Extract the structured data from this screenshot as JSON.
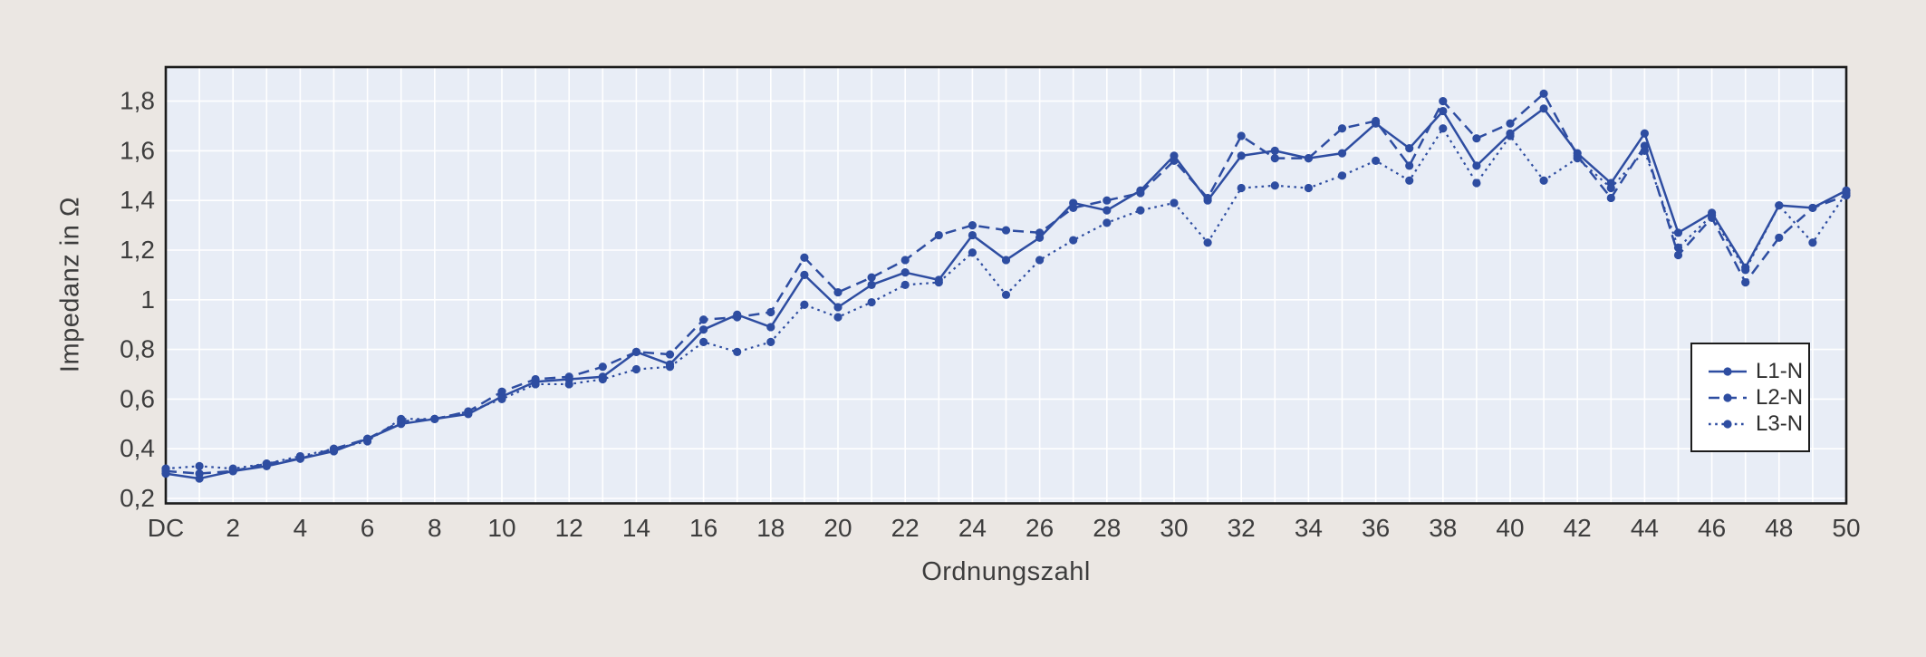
{
  "page": {
    "background_color": "#ebe7e3"
  },
  "chart_data": {
    "type": "line",
    "title": "",
    "xlabel": "Ordnungszahl",
    "ylabel": "Impedanz in Ω",
    "x_min": 0,
    "x_max": 50,
    "x_note": "x = harmonic order, DC (0) through 50, one data point per integer order",
    "x_tick_values": [
      0,
      2,
      4,
      6,
      8,
      10,
      12,
      14,
      16,
      18,
      20,
      22,
      24,
      26,
      28,
      30,
      32,
      34,
      36,
      38,
      40,
      42,
      44,
      46,
      48,
      50
    ],
    "x_tick_labels": [
      "DC",
      "2",
      "4",
      "6",
      "8",
      "10",
      "12",
      "14",
      "16",
      "18",
      "20",
      "22",
      "24",
      "26",
      "28",
      "30",
      "32",
      "34",
      "36",
      "38",
      "40",
      "42",
      "44",
      "46",
      "48",
      "50"
    ],
    "y_tick_values": [
      0.2,
      0.4,
      0.6,
      0.8,
      1.0,
      1.2,
      1.4,
      1.6,
      1.8
    ],
    "y_tick_labels": [
      "0,2",
      "0,4",
      "0,6",
      "0,8",
      "1",
      "1,2",
      "1,4",
      "1,6",
      "1,8"
    ],
    "ylim": [
      0.18,
      1.94
    ],
    "grid": "on",
    "legend_position": "inside-right",
    "series": [
      {
        "name": "L1-N",
        "line_style": "solid",
        "values": [
          0.3,
          0.28,
          0.31,
          0.33,
          0.36,
          0.39,
          0.44,
          0.5,
          0.52,
          0.54,
          0.61,
          0.67,
          0.68,
          0.69,
          0.79,
          0.74,
          0.88,
          0.94,
          0.89,
          1.1,
          0.97,
          1.06,
          1.11,
          1.08,
          1.26,
          1.16,
          1.25,
          1.39,
          1.36,
          1.44,
          1.58,
          1.4,
          1.58,
          1.6,
          1.57,
          1.59,
          1.71,
          1.61,
          1.76,
          1.54,
          1.67,
          1.77,
          1.59,
          1.47,
          1.67,
          1.27,
          1.35,
          1.13,
          1.38,
          1.37,
          1.44
        ]
      },
      {
        "name": "L2-N",
        "line_style": "dashed",
        "values": [
          0.31,
          0.3,
          0.31,
          0.34,
          0.36,
          0.4,
          0.44,
          0.51,
          0.52,
          0.55,
          0.63,
          0.68,
          0.69,
          0.73,
          0.79,
          0.78,
          0.92,
          0.93,
          0.95,
          1.17,
          1.03,
          1.09,
          1.16,
          1.26,
          1.3,
          1.28,
          1.27,
          1.37,
          1.4,
          1.43,
          1.56,
          1.41,
          1.66,
          1.57,
          1.57,
          1.69,
          1.72,
          1.54,
          1.8,
          1.65,
          1.71,
          1.83,
          1.58,
          1.41,
          1.62,
          1.18,
          1.33,
          1.07,
          1.25,
          1.37,
          1.42
        ]
      },
      {
        "name": "L3-N",
        "line_style": "dotted",
        "values": [
          0.32,
          0.33,
          0.32,
          0.34,
          0.37,
          0.4,
          0.43,
          0.52,
          0.52,
          0.55,
          0.6,
          0.66,
          0.66,
          0.68,
          0.72,
          0.73,
          0.83,
          0.79,
          0.83,
          0.98,
          0.93,
          0.99,
          1.06,
          1.07,
          1.19,
          1.02,
          1.16,
          1.24,
          1.31,
          1.36,
          1.39,
          1.23,
          1.45,
          1.46,
          1.45,
          1.5,
          1.56,
          1.48,
          1.69,
          1.47,
          1.66,
          1.48,
          1.57,
          1.45,
          1.6,
          1.21,
          1.34,
          1.12,
          1.38,
          1.23,
          1.43
        ]
      }
    ],
    "colors": {
      "line": "#2e4da1",
      "plot_background": "#e8edf6",
      "gridline": "#ffffff",
      "frame": "#1c1c1c",
      "tick_text": "#3d3d3d",
      "legend_background": "#ffffff",
      "legend_text": "#2e2e2e"
    }
  }
}
